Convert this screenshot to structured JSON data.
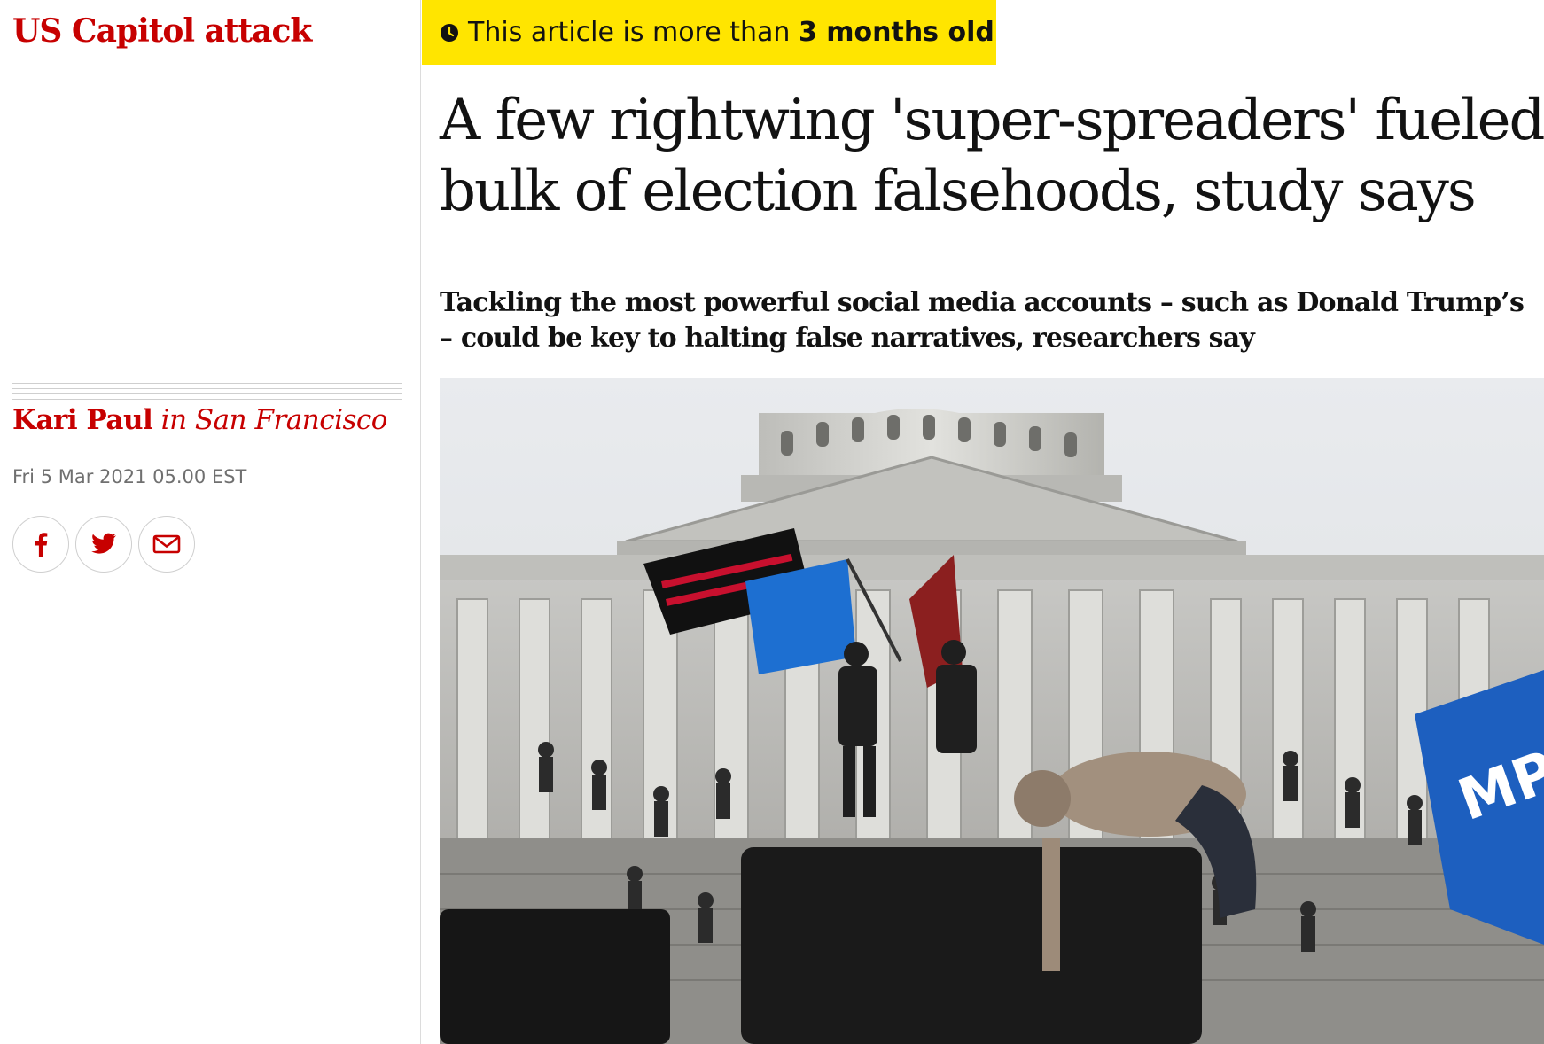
{
  "section": {
    "label": "US Capitol attack"
  },
  "age_notice": {
    "prefix": "This article is more than ",
    "highlight": "3 months old"
  },
  "article": {
    "headline": "A few rightwing 'super-spreaders' fueled bulk of election falsehoods, study says",
    "standfirst": "Tackling the most powerful social media accounts – such as Donald Trump’s – could be key to halting false narratives, researchers say",
    "byline": {
      "author": "Kari Paul",
      "location": "in San Francisco"
    },
    "dateline": "Fri 5 Mar 2021 05.00 EST"
  },
  "share": {
    "icons": [
      "facebook-icon",
      "twitter-icon",
      "email-icon"
    ]
  },
  "colors": {
    "accent": "#c70000",
    "banner": "#ffe500",
    "text": "#121212",
    "muted": "#707070"
  }
}
